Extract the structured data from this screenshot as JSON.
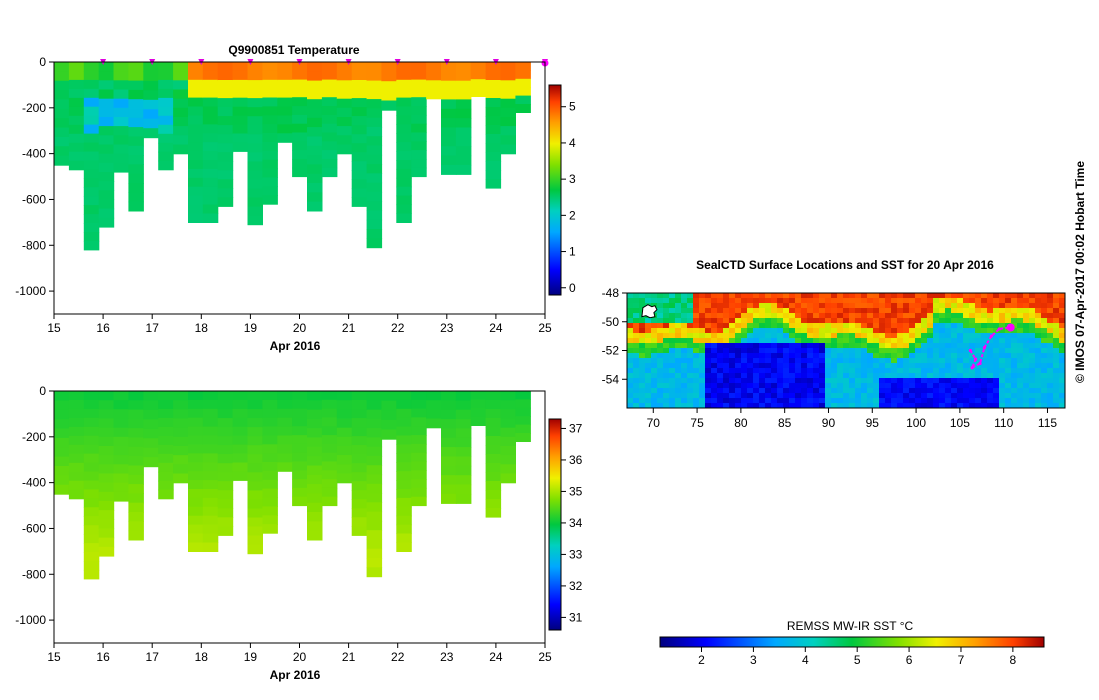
{
  "chart_data": [
    {
      "type": "heatmap",
      "title": "Q9900851  Temperature",
      "xlabel": "Apr 2016",
      "xticks": [
        "15",
        "16",
        "17",
        "18",
        "19",
        "20",
        "21",
        "22",
        "23",
        "24",
        "25"
      ],
      "xlim": [
        15,
        25
      ],
      "yticks": [
        "0",
        "-200",
        "-400",
        "-600",
        "-800",
        "-1000"
      ],
      "ylim": [
        -1100,
        0
      ],
      "colorbar": {
        "ticks": [
          "0",
          "1",
          "2",
          "3",
          "4",
          "5"
        ],
        "range": [
          -0.2,
          5.6
        ]
      },
      "profile_depths": [
        450,
        470,
        820,
        720,
        480,
        650,
        330,
        470,
        400,
        700,
        700,
        630,
        390,
        710,
        620,
        350,
        500,
        650,
        500,
        400,
        630,
        810,
        210,
        700,
        500,
        160,
        490,
        490,
        150,
        550,
        400,
        220
      ],
      "profile_marker_days": [
        16,
        17,
        18,
        19,
        20,
        21,
        22,
        23,
        24,
        25
      ]
    },
    {
      "type": "heatmap",
      "title": "",
      "xlabel": "Apr 2016",
      "xticks": [
        "15",
        "16",
        "17",
        "18",
        "19",
        "20",
        "21",
        "22",
        "23",
        "24",
        "25"
      ],
      "xlim": [
        15,
        25
      ],
      "yticks": [
        "0",
        "-200",
        "-400",
        "-600",
        "-800",
        "-1000"
      ],
      "ylim": [
        -1100,
        0
      ],
      "colorbar": {
        "ticks": [
          "31",
          "32",
          "33",
          "34",
          "35",
          "36",
          "37"
        ],
        "range": [
          30.6,
          37.3
        ]
      },
      "profile_depths": [
        450,
        470,
        820,
        720,
        480,
        650,
        330,
        470,
        400,
        700,
        700,
        630,
        390,
        710,
        620,
        350,
        500,
        650,
        500,
        400,
        630,
        810,
        210,
        700,
        500,
        160,
        490,
        490,
        150,
        550,
        400,
        220
      ]
    },
    {
      "type": "heatmap",
      "title": "SealCTD Surface Locations and SST for 20 Apr 2016",
      "xticks": [
        "70",
        "75",
        "80",
        "85",
        "90",
        "95",
        "100",
        "105",
        "110",
        "115"
      ],
      "xlim": [
        67,
        117
      ],
      "yticks": [
        "-48",
        "-50",
        "-52",
        "-54"
      ],
      "ylim": [
        -56,
        -48
      ],
      "colorbar": {
        "label": "REMSS MW-IR SST °C",
        "ticks": [
          "2",
          "3",
          "4",
          "5",
          "6",
          "7",
          "8"
        ],
        "range": [
          1.2,
          8.6
        ]
      },
      "track_points": [
        [
          106.2,
          -52.0
        ],
        [
          106.8,
          -52.6
        ],
        [
          106.4,
          -53.2
        ],
        [
          107.3,
          -52.9
        ],
        [
          107.8,
          -51.8
        ],
        [
          108.6,
          -51.0
        ],
        [
          109.5,
          -50.5
        ],
        [
          110.8,
          -50.4
        ]
      ],
      "current_position": [
        110.8,
        -50.4
      ]
    }
  ],
  "side_label": "© IMOS 07-Apr-2017 00:02 Hobart Time"
}
